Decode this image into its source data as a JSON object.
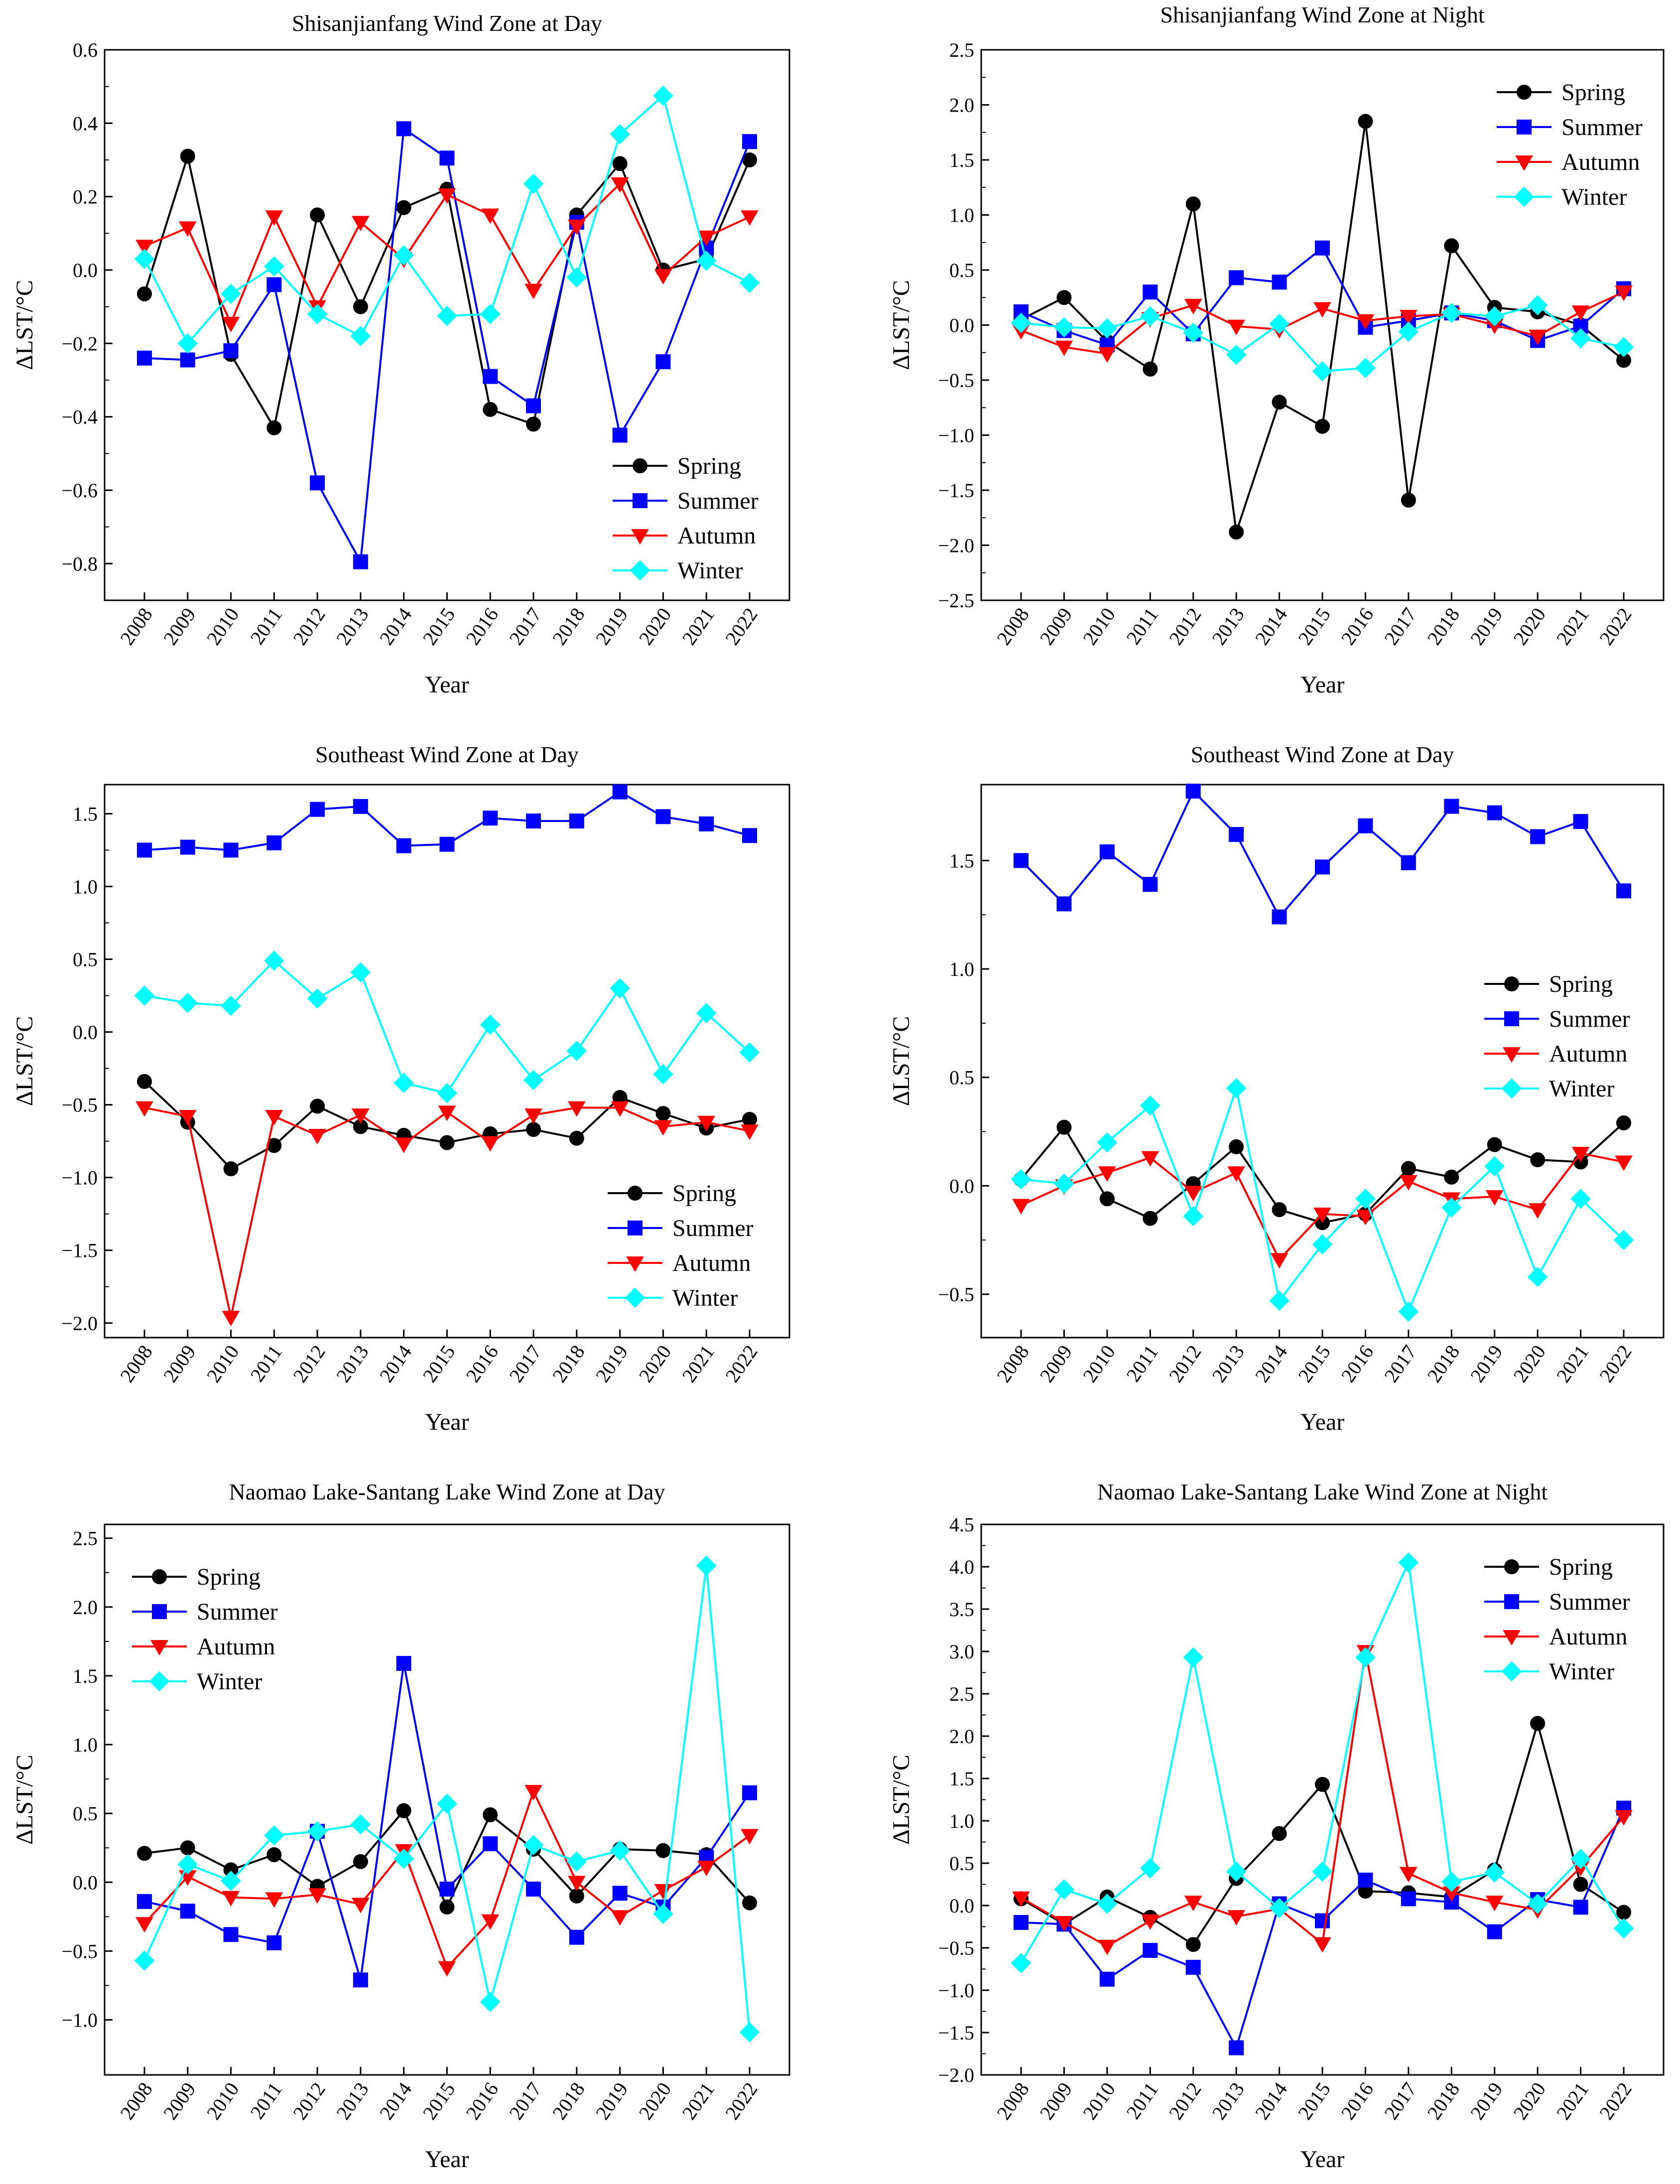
{
  "figure": {
    "years": [
      "2008",
      "2009",
      "2010",
      "2011",
      "2012",
      "2013",
      "2014",
      "2015",
      "2016",
      "2017",
      "2018",
      "2019",
      "2020",
      "2021",
      "2022"
    ],
    "series_styles": [
      {
        "name": "Spring",
        "color": "#000000",
        "marker": "circle"
      },
      {
        "name": "Summer",
        "color": "#0000ff",
        "marker": "square"
      },
      {
        "name": "Autumn",
        "color": "#ff0000",
        "marker": "triangle-down"
      },
      {
        "name": "Winter",
        "color": "#00ffff",
        "marker": "diamond"
      }
    ]
  },
  "chart_data": [
    {
      "type": "line",
      "title": "Shisanjianfang Wind Zone at Day",
      "xlabel": "Year",
      "ylabel": "ΔLST/°C",
      "ylim": [
        -0.9,
        0.6
      ],
      "yticks": [
        0.6,
        0.4,
        0.2,
        0.0,
        -0.2,
        -0.4,
        -0.6,
        -0.8
      ],
      "ytick_labels": [
        "0.6",
        "0.4",
        "0.2",
        "0.0",
        "−0.2",
        "−0.4",
        "−0.6",
        "−0.8"
      ],
      "legend_position": "bottom-right",
      "categories": [
        "2008",
        "2009",
        "2010",
        "2011",
        "2012",
        "2013",
        "2014",
        "2015",
        "2016",
        "2017",
        "2018",
        "2019",
        "2020",
        "2021",
        "2022"
      ],
      "series": [
        {
          "name": "Spring",
          "values": [
            -0.065,
            0.31,
            -0.23,
            -0.43,
            0.15,
            -0.1,
            0.17,
            0.22,
            -0.38,
            -0.42,
            0.15,
            0.29,
            0.0,
            0.03,
            0.3
          ]
        },
        {
          "name": "Summer",
          "values": [
            -0.24,
            -0.245,
            -0.22,
            -0.04,
            -0.58,
            -0.795,
            0.385,
            0.305,
            -0.29,
            -0.37,
            0.13,
            -0.45,
            -0.25,
            0.06,
            0.35
          ]
        },
        {
          "name": "Autumn",
          "values": [
            0.065,
            0.115,
            -0.145,
            0.145,
            -0.1,
            0.13,
            0.03,
            0.205,
            0.15,
            -0.055,
            0.12,
            0.235,
            -0.015,
            0.09,
            0.145
          ]
        },
        {
          "name": "Winter",
          "values": [
            0.03,
            -0.2,
            -0.065,
            0.01,
            -0.12,
            -0.18,
            0.04,
            -0.125,
            -0.12,
            0.235,
            -0.02,
            0.37,
            0.475,
            0.025,
            -0.035
          ]
        }
      ]
    },
    {
      "type": "line",
      "title": "Shisanjianfang Wind Zone at Night",
      "xlabel": "Year",
      "ylabel": "ΔLST/°C",
      "ylim": [
        -2.5,
        2.5
      ],
      "yticks": [
        2.5,
        2.0,
        1.5,
        1.0,
        0.5,
        0.0,
        -0.5,
        -1.0,
        -1.5,
        -2.0,
        -2.5
      ],
      "ytick_labels": [
        "2.5",
        "2.0",
        "1.5",
        "1.0",
        "0.5",
        "0.0",
        "−0.5",
        "−1.0",
        "−1.5",
        "−2.0",
        "−2.5"
      ],
      "legend_position": "top-right",
      "categories": [
        "2008",
        "2009",
        "2010",
        "2011",
        "2012",
        "2013",
        "2014",
        "2015",
        "2016",
        "2017",
        "2018",
        "2019",
        "2020",
        "2021",
        "2022"
      ],
      "series": [
        {
          "name": "Spring",
          "values": [
            0.05,
            0.25,
            -0.15,
            -0.4,
            1.1,
            -1.88,
            -0.7,
            -0.92,
            1.85,
            -1.59,
            0.72,
            0.16,
            0.12,
            0.0,
            -0.32
          ]
        },
        {
          "name": "Summer",
          "values": [
            0.12,
            -0.05,
            -0.18,
            0.3,
            -0.08,
            0.43,
            0.39,
            0.7,
            -0.02,
            0.04,
            0.11,
            0.04,
            -0.14,
            -0.01,
            0.33
          ]
        },
        {
          "name": "Autumn",
          "values": [
            -0.05,
            -0.2,
            -0.26,
            0.06,
            0.18,
            -0.01,
            -0.04,
            0.15,
            0.04,
            0.08,
            0.1,
            0.0,
            -0.1,
            0.12,
            0.3
          ]
        },
        {
          "name": "Winter",
          "values": [
            0.02,
            -0.02,
            -0.03,
            0.08,
            -0.07,
            -0.27,
            0.01,
            -0.42,
            -0.39,
            -0.06,
            0.11,
            0.08,
            0.18,
            -0.12,
            -0.2
          ]
        }
      ]
    },
    {
      "type": "line",
      "title": "Southeast Wind Zone at Day",
      "xlabel": "Year",
      "ylabel": "ΔLST/°C",
      "ylim": [
        -2.1,
        1.7
      ],
      "yticks": [
        1.5,
        1.0,
        0.5,
        0.0,
        -0.5,
        -1.0,
        -1.5,
        -2.0
      ],
      "ytick_labels": [
        "1.5",
        "1.0",
        "0.5",
        "0.0",
        "−0.5",
        "−1.0",
        "−1.5",
        "−2.0"
      ],
      "legend_position": "bottom-right",
      "categories": [
        "2008",
        "2009",
        "2010",
        "2011",
        "2012",
        "2013",
        "2014",
        "2015",
        "2016",
        "2017",
        "2018",
        "2019",
        "2020",
        "2021",
        "2022"
      ],
      "series": [
        {
          "name": "Spring",
          "values": [
            -0.34,
            -0.62,
            -0.94,
            -0.78,
            -0.51,
            -0.65,
            -0.71,
            -0.76,
            -0.7,
            -0.67,
            -0.73,
            -0.45,
            -0.56,
            -0.66,
            -0.6
          ]
        },
        {
          "name": "Summer",
          "values": [
            1.25,
            1.27,
            1.25,
            1.3,
            1.53,
            1.55,
            1.28,
            1.29,
            1.47,
            1.45,
            1.45,
            1.65,
            1.48,
            1.43,
            1.35
          ]
        },
        {
          "name": "Autumn",
          "values": [
            -0.52,
            -0.58,
            -1.96,
            -0.58,
            -0.71,
            -0.57,
            -0.77,
            -0.55,
            -0.76,
            -0.57,
            -0.52,
            -0.52,
            -0.65,
            -0.62,
            -0.68
          ]
        },
        {
          "name": "Winter",
          "values": [
            0.25,
            0.2,
            0.18,
            0.49,
            0.23,
            0.41,
            -0.35,
            -0.42,
            0.05,
            -0.33,
            -0.13,
            0.3,
            -0.29,
            0.13,
            -0.14
          ]
        }
      ]
    },
    {
      "type": "line",
      "title": "Southeast Wind Zone at Day",
      "xlabel": "Year",
      "ylabel": "ΔLST/°C",
      "ylim": [
        -0.7,
        1.85
      ],
      "yticks": [
        1.5,
        1.0,
        0.5,
        0.0,
        -0.5
      ],
      "ytick_labels": [
        "1.5",
        "1.0",
        "0.5",
        "0.0",
        "−0.5"
      ],
      "legend_position": "middle-right",
      "categories": [
        "2008",
        "2009",
        "2010",
        "2011",
        "2012",
        "2013",
        "2014",
        "2015",
        "2016",
        "2017",
        "2018",
        "2019",
        "2020",
        "2021",
        "2022"
      ],
      "series": [
        {
          "name": "Spring",
          "values": [
            0.03,
            0.27,
            -0.06,
            -0.15,
            0.01,
            0.18,
            -0.11,
            -0.17,
            -0.13,
            0.08,
            0.04,
            0.19,
            0.12,
            0.11,
            0.29
          ]
        },
        {
          "name": "Summer",
          "values": [
            1.5,
            1.3,
            1.54,
            1.39,
            1.82,
            1.62,
            1.24,
            1.47,
            1.66,
            1.49,
            1.75,
            1.72,
            1.61,
            1.68,
            1.36
          ]
        },
        {
          "name": "Autumn",
          "values": [
            -0.09,
            0.0,
            0.06,
            0.13,
            -0.03,
            0.06,
            -0.34,
            -0.13,
            -0.14,
            0.02,
            -0.06,
            -0.05,
            -0.11,
            0.15,
            0.11
          ]
        },
        {
          "name": "Winter",
          "values": [
            0.03,
            0.01,
            0.2,
            0.37,
            -0.14,
            0.45,
            -0.53,
            -0.27,
            -0.06,
            -0.58,
            -0.1,
            0.09,
            -0.42,
            -0.06,
            -0.25
          ]
        }
      ]
    },
    {
      "type": "line",
      "title": "Naomao Lake-Santang Lake Wind Zone at Day",
      "xlabel": "Year",
      "ylabel": "ΔLST/°C",
      "ylim": [
        -1.4,
        2.6
      ],
      "yticks": [
        2.5,
        2.0,
        1.5,
        1.0,
        0.5,
        0.0,
        -0.5,
        -1.0
      ],
      "ytick_labels": [
        "2.5",
        "2.0",
        "1.5",
        "1.0",
        "0.5",
        "0.0",
        "−0.5",
        "−1.0"
      ],
      "legend_position": "top-left",
      "categories": [
        "2008",
        "2009",
        "2010",
        "2011",
        "2012",
        "2013",
        "2014",
        "2015",
        "2016",
        "2017",
        "2018",
        "2019",
        "2020",
        "2021",
        "2022"
      ],
      "series": [
        {
          "name": "Spring",
          "values": [
            0.21,
            0.25,
            0.09,
            0.2,
            -0.03,
            0.15,
            0.52,
            -0.18,
            0.49,
            0.24,
            -0.1,
            0.24,
            0.23,
            0.2,
            -0.15
          ]
        },
        {
          "name": "Summer",
          "values": [
            -0.14,
            -0.21,
            -0.38,
            -0.44,
            0.37,
            -0.71,
            1.59,
            -0.05,
            0.28,
            -0.05,
            -0.4,
            -0.08,
            -0.18,
            0.18,
            0.65
          ]
        },
        {
          "name": "Autumn",
          "values": [
            -0.3,
            0.04,
            -0.11,
            -0.12,
            -0.09,
            -0.16,
            0.23,
            -0.62,
            -0.28,
            0.66,
            0.0,
            -0.25,
            -0.06,
            0.11,
            0.34
          ]
        },
        {
          "name": "Winter",
          "values": [
            -0.57,
            0.13,
            0.01,
            0.34,
            0.37,
            0.42,
            0.17,
            0.57,
            -0.87,
            0.27,
            0.15,
            0.23,
            -0.23,
            2.3,
            -1.09
          ]
        }
      ]
    },
    {
      "type": "line",
      "title": "Naomao Lake-Santang Lake Wind Zone at Night",
      "xlabel": "Year",
      "ylabel": "ΔLST/°C",
      "ylim": [
        -2.0,
        4.5
      ],
      "yticks": [
        4.5,
        4.0,
        3.5,
        3.0,
        2.5,
        2.0,
        1.5,
        1.0,
        0.5,
        0.0,
        -0.5,
        -1.0,
        -1.5,
        -2.0
      ],
      "ytick_labels": [
        "4.5",
        "4.0",
        "3.5",
        "3.0",
        "2.5",
        "2.0",
        "1.5",
        "1.0",
        "0.5",
        "0.0",
        "−0.5",
        "−1.0",
        "−1.5",
        "−2.0"
      ],
      "legend_position": "top-right",
      "categories": [
        "2008",
        "2009",
        "2010",
        "2011",
        "2012",
        "2013",
        "2014",
        "2015",
        "2016",
        "2017",
        "2018",
        "2019",
        "2020",
        "2021",
        "2022"
      ],
      "series": [
        {
          "name": "Spring",
          "values": [
            0.08,
            -0.22,
            0.1,
            -0.14,
            -0.46,
            0.32,
            0.85,
            1.43,
            0.17,
            0.15,
            0.1,
            0.42,
            2.15,
            0.25,
            -0.08
          ]
        },
        {
          "name": "Summer",
          "values": [
            -0.2,
            -0.22,
            -0.87,
            -0.53,
            -0.73,
            -1.68,
            0.02,
            -0.18,
            0.3,
            0.08,
            0.04,
            -0.31,
            0.07,
            -0.02,
            1.15
          ]
        },
        {
          "name": "Autumn",
          "values": [
            0.09,
            -0.2,
            -0.48,
            -0.18,
            0.04,
            -0.13,
            -0.04,
            -0.45,
            3.0,
            0.38,
            0.15,
            0.04,
            -0.05,
            0.45,
            1.05
          ]
        },
        {
          "name": "Winter",
          "values": [
            -0.68,
            0.19,
            0.02,
            0.44,
            2.93,
            0.4,
            -0.03,
            0.4,
            2.93,
            4.05,
            0.28,
            0.39,
            0.02,
            0.55,
            -0.27
          ]
        }
      ]
    }
  ]
}
